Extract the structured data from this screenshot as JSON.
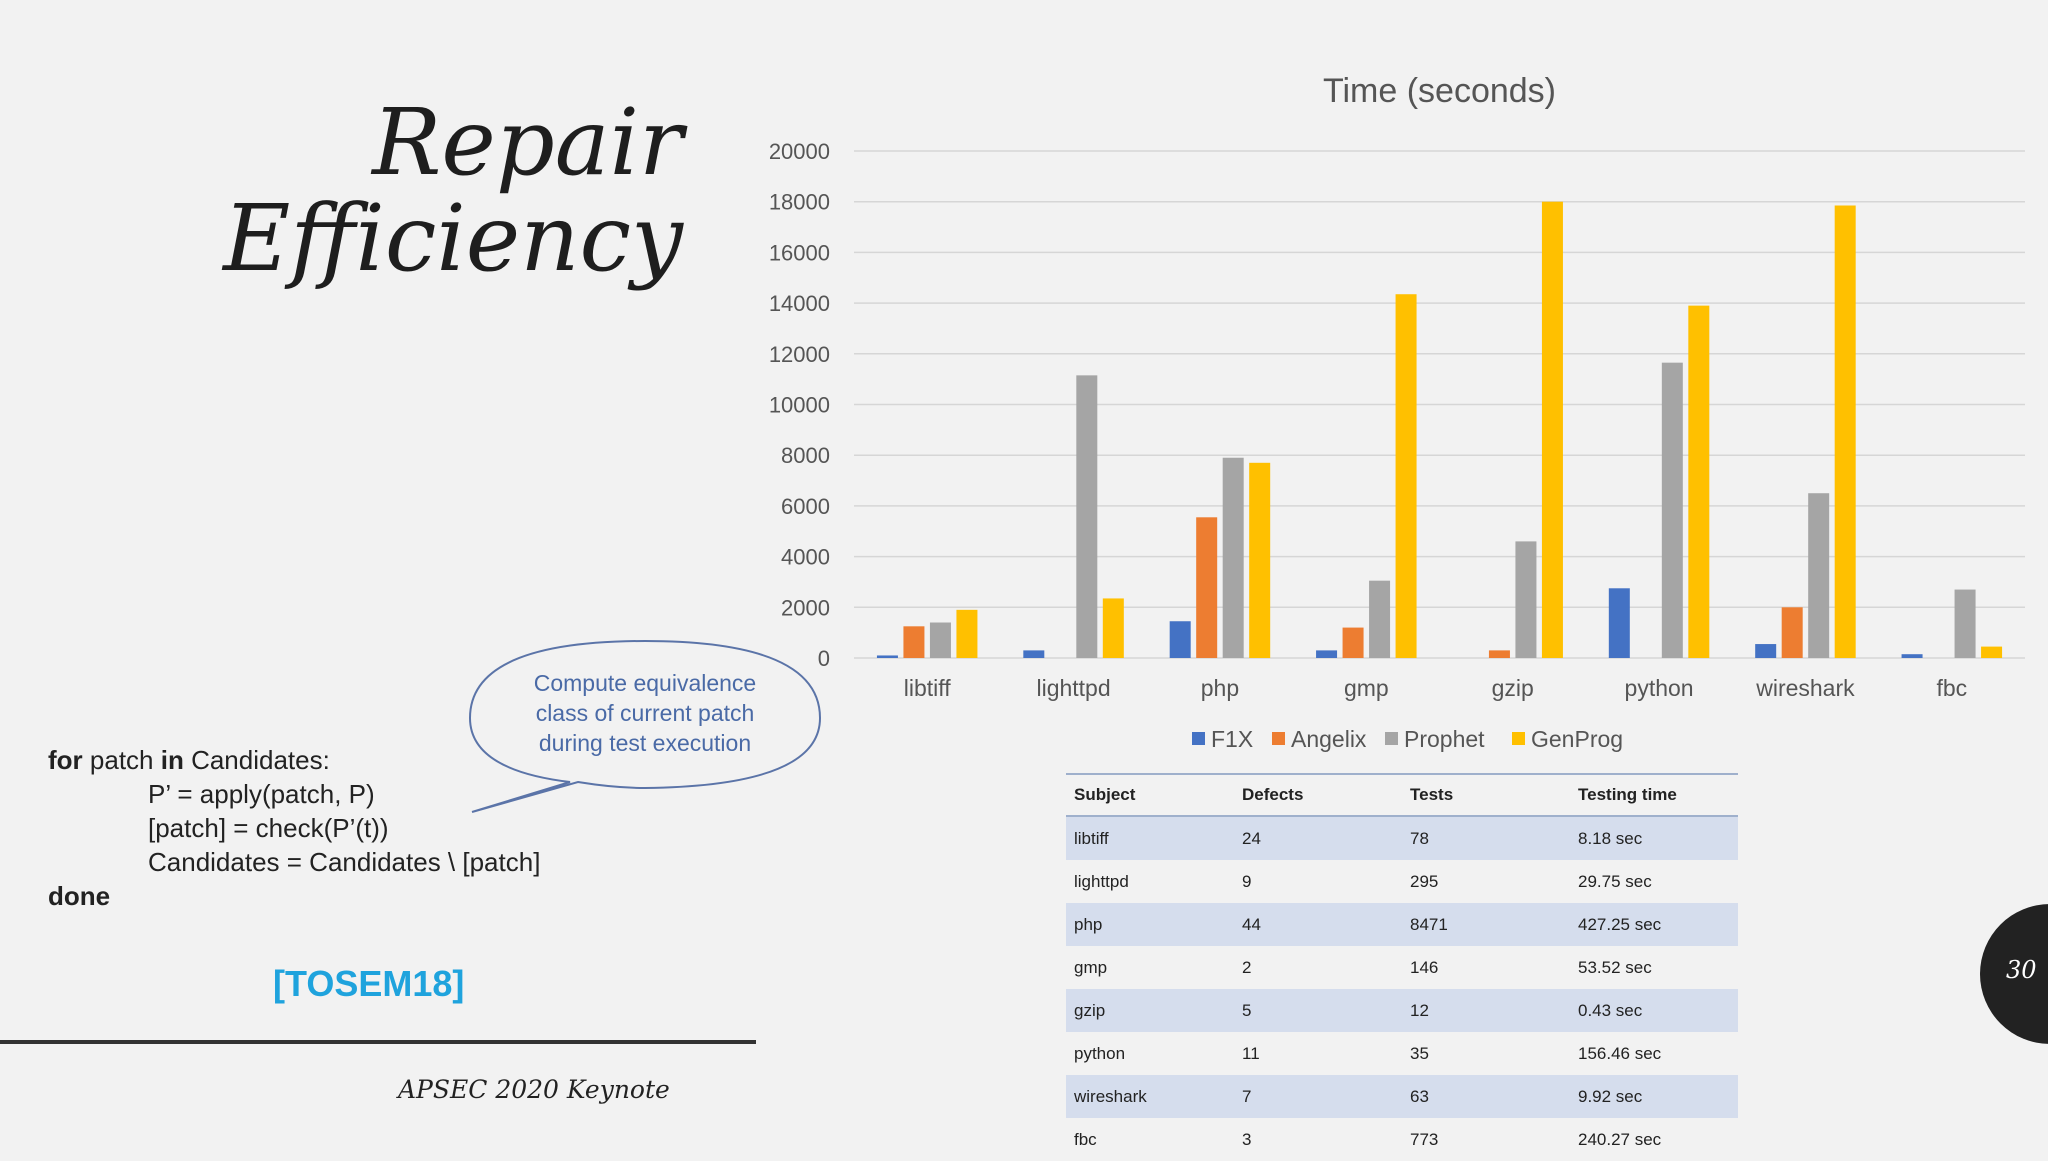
{
  "slide": {
    "title_line1": "Repair",
    "title_line2": "Efficiency",
    "callout": [
      "Compute equivalence",
      "class of current patch",
      "during test execution"
    ],
    "reference": "[TOSEM18]",
    "footer": "APSEC 2020 Keynote",
    "page_number": "30"
  },
  "code": {
    "line1_kw1": "for",
    "line1_mid": " patch ",
    "line1_kw2": "in",
    "line1_end": " Candidates:",
    "line2": "P’ = apply(patch, P)",
    "line3": "[patch] = check(P’(t))",
    "line4": "Candidates = Candidates \\ [patch]",
    "line5": "done"
  },
  "chart_data": {
    "type": "bar",
    "title": "Time (seconds)",
    "categories": [
      "libtiff",
      "lighttpd",
      "php",
      "gmp",
      "gzip",
      "python",
      "wireshark",
      "fbc"
    ],
    "series": [
      {
        "name": "F1X",
        "color": "#4472c4",
        "values": [
          100,
          300,
          1450,
          300,
          0,
          2750,
          550,
          150
        ]
      },
      {
        "name": "Angelix",
        "color": "#ed7d31",
        "values": [
          1250,
          0,
          5550,
          1200,
          300,
          0,
          2000,
          0
        ]
      },
      {
        "name": "Prophet",
        "color": "#a5a5a5",
        "values": [
          1400,
          11150,
          7900,
          3050,
          4600,
          11650,
          6500,
          2700
        ]
      },
      {
        "name": "GenProg",
        "color": "#ffc000",
        "values": [
          1900,
          2350,
          7700,
          14350,
          18000,
          13900,
          17850,
          450
        ]
      }
    ],
    "ylim": [
      0,
      20000
    ],
    "yticks": [
      "0",
      "2000",
      "4000",
      "6000",
      "8000",
      "10000",
      "12000",
      "14000",
      "16000",
      "18000",
      "20000"
    ],
    "grid": true,
    "legend": "bottom"
  },
  "table": {
    "headers": [
      "Subject",
      "Defects",
      "Tests",
      "Testing time"
    ],
    "rows": [
      [
        "libtiff",
        "24",
        "78",
        "8.18 sec"
      ],
      [
        "lighttpd",
        "9",
        "295",
        "29.75 sec"
      ],
      [
        "php",
        "44",
        "8471",
        "427.25 sec"
      ],
      [
        "gmp",
        "2",
        "146",
        "53.52 sec"
      ],
      [
        "gzip",
        "5",
        "12",
        "0.43 sec"
      ],
      [
        "python",
        "11",
        "35",
        "156.46 sec"
      ],
      [
        "wireshark",
        "7",
        "63",
        "9.92 sec"
      ],
      [
        "fbc",
        "3",
        "773",
        "240.27 sec"
      ]
    ]
  }
}
